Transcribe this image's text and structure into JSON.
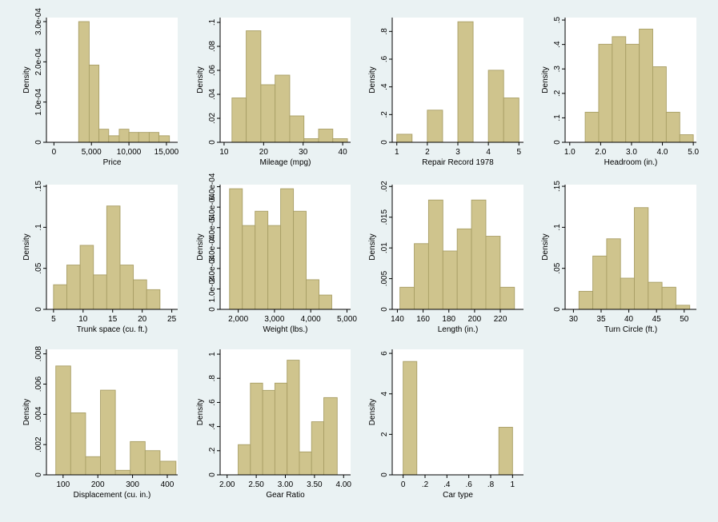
{
  "colors": {
    "background": "#eaf2f3",
    "plot_area": "#ffffff",
    "bar_fill": "#cfc48d",
    "bar_edge": "#a99f66"
  },
  "chart_data": [
    {
      "type": "bar",
      "xlabel": "Price",
      "ylabel": "Density",
      "xticks": [
        "0",
        "5,000",
        "10,000",
        "15,000"
      ],
      "yticks": [
        "0",
        "1.0e-04",
        "2.0e-04",
        "3.0e-04"
      ],
      "xlim": [
        -1000,
        16500
      ],
      "ylim": [
        0,
        0.00031
      ],
      "xtick_values": [
        0,
        5000,
        10000,
        15000
      ],
      "ytick_values": [
        0,
        0.0001,
        0.0002,
        0.0003
      ],
      "bins": [
        [
          3300,
          4700
        ],
        [
          4700,
          6000
        ],
        [
          6000,
          7300
        ],
        [
          7300,
          8700
        ],
        [
          8700,
          10000
        ],
        [
          10000,
          11300
        ],
        [
          11300,
          12700
        ],
        [
          12700,
          14000
        ],
        [
          14000,
          15400
        ]
      ],
      "values": [
        0.0003,
        0.000192,
        3.25e-05,
        1.62e-05,
        3.25e-05,
        2.45e-05,
        2.45e-05,
        2.45e-05,
        1.62e-05
      ]
    },
    {
      "type": "bar",
      "xlabel": "Mileage (mpg)",
      "ylabel": "Density",
      "xticks": [
        "10",
        "20",
        "30",
        "40"
      ],
      "yticks": [
        "0",
        ".02",
        ".04",
        ".06",
        ".08",
        ".1"
      ],
      "xlim": [
        9,
        42
      ],
      "ylim": [
        0,
        0.104
      ],
      "xtick_values": [
        10,
        20,
        30,
        40
      ],
      "ytick_values": [
        0,
        0.02,
        0.04,
        0.06,
        0.08,
        0.1
      ],
      "bins": [
        [
          12,
          15.6
        ],
        [
          15.6,
          19.3
        ],
        [
          19.3,
          22.9
        ],
        [
          22.9,
          26.6
        ],
        [
          26.6,
          30.2
        ],
        [
          30.2,
          33.9
        ],
        [
          33.9,
          37.5
        ],
        [
          37.5,
          41.2
        ]
      ],
      "values": [
        0.037,
        0.093,
        0.048,
        0.056,
        0.022,
        0.003,
        0.011,
        0.003
      ]
    },
    {
      "type": "bar",
      "xlabel": "Repair Record 1978",
      "ylabel": "Density",
      "xticks": [
        "1",
        "2",
        "3",
        "4",
        "5"
      ],
      "yticks": [
        "0",
        ".2",
        ".4",
        ".6",
        ".8"
      ],
      "xlim": [
        0.85,
        5.15
      ],
      "ylim": [
        0,
        0.9
      ],
      "xtick_values": [
        1,
        2,
        3,
        4,
        5
      ],
      "ytick_values": [
        0,
        0.2,
        0.4,
        0.6,
        0.8
      ],
      "bins": [
        [
          1,
          1.5
        ],
        [
          2,
          2.5
        ],
        [
          3,
          3.5
        ],
        [
          4,
          4.5
        ],
        [
          4.5,
          5
        ]
      ],
      "values": [
        0.058,
        0.232,
        0.87,
        0.52,
        0.32
      ]
    },
    {
      "type": "bar",
      "xlabel": "Headroom (in.)",
      "ylabel": "Density",
      "xticks": [
        "1.0",
        "2.0",
        "3.0",
        "4.0",
        "5.0"
      ],
      "yticks": [
        "0",
        ".1",
        ".2",
        ".3",
        ".4",
        ".5"
      ],
      "xlim": [
        0.85,
        5.1
      ],
      "ylim": [
        0,
        0.51
      ],
      "xtick_values": [
        1,
        2,
        3,
        4,
        5
      ],
      "ytick_values": [
        0,
        0.1,
        0.2,
        0.3,
        0.4,
        0.5
      ],
      "bins": [
        [
          1.5,
          1.9375
        ],
        [
          1.9375,
          2.375
        ],
        [
          2.375,
          2.8125
        ],
        [
          2.8125,
          3.25
        ],
        [
          3.25,
          3.6875
        ],
        [
          3.6875,
          4.125
        ],
        [
          4.125,
          4.5625
        ],
        [
          4.5625,
          5
        ]
      ],
      "values": [
        0.123,
        0.401,
        0.432,
        0.401,
        0.463,
        0.309,
        0.123,
        0.031
      ]
    },
    {
      "type": "bar",
      "xlabel": "Trunk space (cu. ft.)",
      "ylabel": "Density",
      "xticks": [
        "5",
        "10",
        "15",
        "20",
        "25"
      ],
      "yticks": [
        "0",
        ".05",
        ".1",
        ".15"
      ],
      "xlim": [
        3.8,
        26
      ],
      "ylim": [
        0,
        0.152
      ],
      "xtick_values": [
        5,
        10,
        15,
        20,
        25
      ],
      "ytick_values": [
        0,
        0.05,
        0.1,
        0.15
      ],
      "bins": [
        [
          5,
          7.25
        ],
        [
          7.25,
          9.5
        ],
        [
          9.5,
          11.75
        ],
        [
          11.75,
          14
        ],
        [
          14,
          16.25
        ],
        [
          16.25,
          18.5
        ],
        [
          18.5,
          20.75
        ],
        [
          20.75,
          23
        ]
      ],
      "values": [
        0.03,
        0.054,
        0.078,
        0.042,
        0.126,
        0.054,
        0.036,
        0.024
      ]
    },
    {
      "type": "bar",
      "xlabel": "Weight (lbs.)",
      "ylabel": "Density",
      "xticks": [
        "2,000",
        "3,000",
        "4,000",
        "5,000"
      ],
      "yticks": [
        "0",
        "1.0e-04",
        "2.0e-04",
        "3.0e-04",
        "4.0e-04",
        "5.0e-04",
        "6.0e-04"
      ],
      "xlim": [
        1500,
        5100
      ],
      "ylim": [
        0,
        0.00061
      ],
      "xtick_values": [
        2000,
        3000,
        4000,
        5000
      ],
      "ytick_values": [
        0,
        0.0001,
        0.0002,
        0.0003,
        0.0004,
        0.0005,
        0.0006
      ],
      "bins": [
        [
          1760,
          2113
        ],
        [
          2113,
          2465
        ],
        [
          2465,
          2818
        ],
        [
          2818,
          3170
        ],
        [
          3170,
          3523
        ],
        [
          3523,
          3875
        ],
        [
          3875,
          4228
        ],
        [
          4228,
          4580
        ]
      ],
      "values": [
        0.00059,
        0.00041,
        0.00048,
        0.00041,
        0.00059,
        0.00048,
        0.000145,
        7e-05
      ]
    },
    {
      "type": "bar",
      "xlabel": "Length (in.)",
      "ylabel": "Density",
      "xticks": [
        "140",
        "160",
        "180",
        "200",
        "220"
      ],
      "yticks": [
        "0",
        ".005",
        ".01",
        ".015",
        ".02"
      ],
      "xlim": [
        136,
        238
      ],
      "ylim": [
        0,
        0.0203
      ],
      "xtick_values": [
        140,
        160,
        180,
        200,
        220
      ],
      "ytick_values": [
        0,
        0.005,
        0.01,
        0.015,
        0.02
      ],
      "bins": [
        [
          142,
          153.125
        ],
        [
          153.125,
          164.25
        ],
        [
          164.25,
          175.375
        ],
        [
          175.375,
          186.5
        ],
        [
          186.5,
          197.625
        ],
        [
          197.625,
          208.75
        ],
        [
          208.75,
          219.875
        ],
        [
          219.875,
          231
        ]
      ],
      "values": [
        0.0036,
        0.0107,
        0.0178,
        0.0095,
        0.0131,
        0.0178,
        0.0119,
        0.0036
      ]
    },
    {
      "type": "bar",
      "xlabel": "Turn Circle (ft.)",
      "ylabel": "Density",
      "xticks": [
        "30",
        "35",
        "40",
        "45",
        "50"
      ],
      "yticks": [
        "0",
        ".05",
        ".1",
        ".15"
      ],
      "xlim": [
        28.5,
        52.2
      ],
      "ylim": [
        0,
        0.152
      ],
      "xtick_values": [
        30,
        35,
        40,
        45,
        50
      ],
      "ytick_values": [
        0,
        0.05,
        0.1,
        0.15
      ],
      "bins": [
        [
          31,
          33.5
        ],
        [
          33.5,
          36
        ],
        [
          36,
          38.5
        ],
        [
          38.5,
          41
        ],
        [
          41,
          43.5
        ],
        [
          43.5,
          46
        ],
        [
          46,
          48.5
        ],
        [
          48.5,
          51
        ]
      ],
      "values": [
        0.022,
        0.065,
        0.086,
        0.038,
        0.124,
        0.033,
        0.027,
        0.005
      ]
    },
    {
      "type": "bar",
      "xlabel": "Displacement (cu. in.)",
      "ylabel": "Density",
      "xticks": [
        "100",
        "200",
        "300",
        "400"
      ],
      "yticks": [
        "0",
        ".002",
        ".004",
        ".006",
        ".008"
      ],
      "xlim": [
        52,
        430
      ],
      "ylim": [
        0,
        0.0083
      ],
      "xtick_values": [
        100,
        200,
        300,
        400
      ],
      "ytick_values": [
        0,
        0.002,
        0.004,
        0.006,
        0.008
      ],
      "bins": [
        [
          79,
          121.875
        ],
        [
          121.875,
          164.75
        ],
        [
          164.75,
          207.625
        ],
        [
          207.625,
          250.5
        ],
        [
          250.5,
          293.375
        ],
        [
          293.375,
          336.25
        ],
        [
          336.25,
          379.125
        ],
        [
          379.125,
          425
        ]
      ],
      "values": [
        0.0072,
        0.0041,
        0.0012,
        0.0056,
        0.0003,
        0.0022,
        0.0016,
        0.0009
      ]
    },
    {
      "type": "bar",
      "xlabel": "Gear Ratio",
      "ylabel": "Density",
      "xticks": [
        "2.00",
        "2.50",
        "3.00",
        "3.50",
        "4.00"
      ],
      "yticks": [
        "0",
        ".2",
        ".4",
        ".6",
        ".8",
        "1"
      ],
      "xlim": [
        1.88,
        4.12
      ],
      "ylim": [
        0,
        1.04
      ],
      "xtick_values": [
        2,
        2.5,
        3,
        3.5,
        4
      ],
      "ytick_values": [
        0,
        0.2,
        0.4,
        0.6,
        0.8,
        1
      ],
      "bins": [
        [
          2.19,
          2.4
        ],
        [
          2.4,
          2.61
        ],
        [
          2.61,
          2.82
        ],
        [
          2.82,
          3.03
        ],
        [
          3.03,
          3.24
        ],
        [
          3.24,
          3.45
        ],
        [
          3.45,
          3.66
        ],
        [
          3.66,
          3.89
        ]
      ],
      "values": [
        0.25,
        0.76,
        0.7,
        0.76,
        0.95,
        0.19,
        0.44,
        0.64
      ]
    },
    {
      "type": "bar",
      "xlabel": "Car type",
      "ylabel": "Density",
      "xticks": [
        "0",
        ".2",
        ".4",
        ".6",
        ".8",
        "1"
      ],
      "yticks": [
        "0",
        "2",
        "4",
        "6"
      ],
      "xlim": [
        -0.1,
        1.1
      ],
      "ylim": [
        0,
        6.2
      ],
      "xtick_values": [
        0,
        0.2,
        0.4,
        0.6,
        0.8,
        1
      ],
      "ytick_values": [
        0,
        2,
        4,
        6
      ],
      "bins": [
        [
          0,
          0.125
        ],
        [
          0.875,
          1
        ]
      ],
      "values": [
        5.6,
        2.35
      ]
    }
  ]
}
